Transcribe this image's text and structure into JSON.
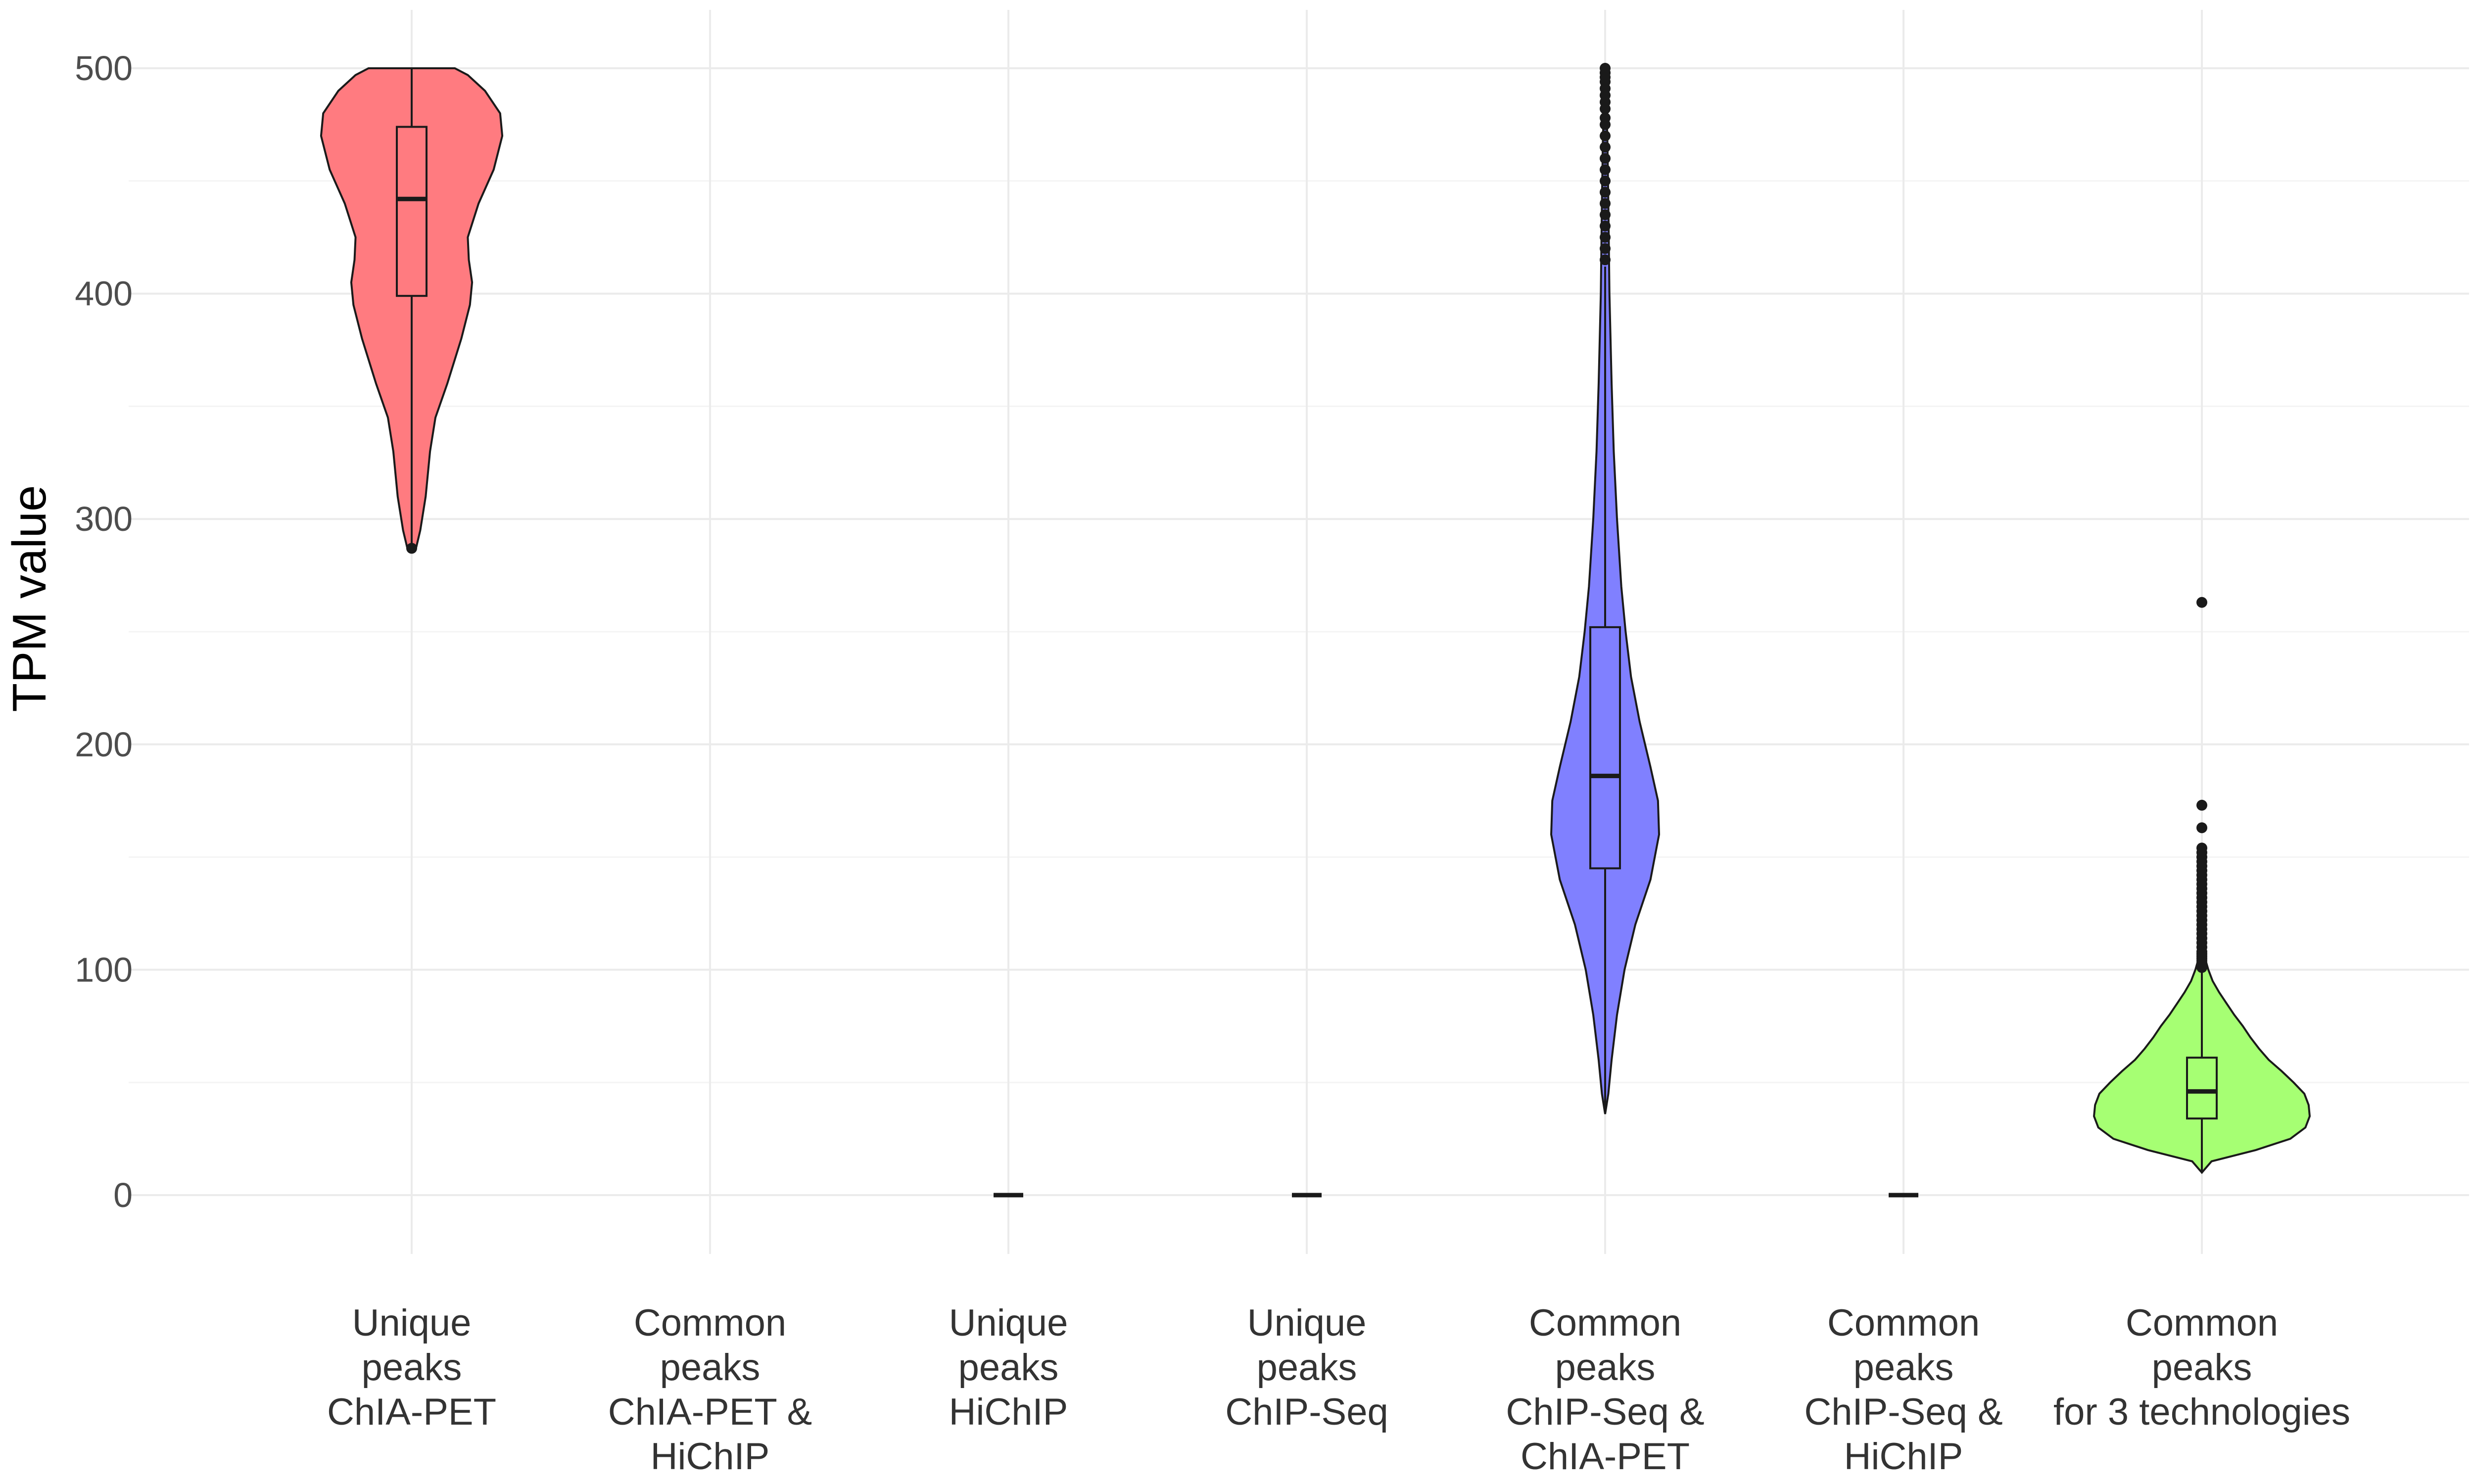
{
  "chart_data": {
    "type": "violin",
    "title": "",
    "xlabel": "",
    "ylabel": "TPM value",
    "ylim": [
      -25,
      525
    ],
    "y_ticks": [
      0,
      100,
      200,
      300,
      400,
      500
    ],
    "y_tick_labels": [
      "0",
      "100",
      "200",
      "300",
      "400",
      "500"
    ],
    "grid": true,
    "legend": "none",
    "categories": [
      {
        "lines": [
          "Unique",
          "peaks",
          "ChIA-PET"
        ]
      },
      {
        "lines": [
          "Common",
          "peaks",
          "ChIA-PET &",
          "HiChIP"
        ]
      },
      {
        "lines": [
          "Unique",
          "peaks",
          "HiChIP"
        ]
      },
      {
        "lines": [
          "Unique",
          "peaks",
          "ChIP-Seq"
        ]
      },
      {
        "lines": [
          "Common",
          "peaks",
          "ChIP-Seq &",
          "ChIA-PET"
        ]
      },
      {
        "lines": [
          "Common",
          "peaks",
          "ChIP-Seq &",
          "HiChIP"
        ]
      },
      {
        "lines": [
          "Common",
          "peaks",
          "for 3 technologies"
        ]
      }
    ],
    "series": [
      {
        "category_index": 0,
        "color": "#ff7b80",
        "min": 287,
        "q1": 399,
        "median": 442,
        "q3": 474,
        "max": 500,
        "outliers": [
          287
        ],
        "density": [
          [
            287,
            0.04
          ],
          [
            295,
            0.08
          ],
          [
            310,
            0.13
          ],
          [
            330,
            0.17
          ],
          [
            345,
            0.22
          ],
          [
            360,
            0.33
          ],
          [
            380,
            0.46
          ],
          [
            395,
            0.54
          ],
          [
            405,
            0.56
          ],
          [
            415,
            0.53
          ],
          [
            425,
            0.52
          ],
          [
            440,
            0.62
          ],
          [
            455,
            0.76
          ],
          [
            470,
            0.84
          ],
          [
            480,
            0.82
          ],
          [
            490,
            0.68
          ],
          [
            497,
            0.52
          ],
          [
            500,
            0.4
          ]
        ]
      },
      {
        "category_index": 1,
        "color": "#ffffff",
        "empty": true
      },
      {
        "category_index": 2,
        "color": "#dddddd",
        "min": 0,
        "q1": 0,
        "median": 0,
        "q3": 0,
        "max": 0,
        "outliers": [],
        "density": []
      },
      {
        "category_index": 3,
        "color": "#dddddd",
        "min": 0,
        "q1": 0,
        "median": 0,
        "q3": 0,
        "max": 0,
        "outliers": [],
        "density": []
      },
      {
        "category_index": 4,
        "color": "#8080ff",
        "min": 36,
        "q1": 145,
        "median": 186,
        "q3": 252,
        "max": 412,
        "outliers": [
          415,
          420,
          425,
          430,
          435,
          440,
          445,
          450,
          455,
          460,
          465,
          470,
          475,
          478,
          482,
          485,
          488,
          491,
          494,
          496,
          498,
          500
        ],
        "density": [
          [
            36,
            0.0
          ],
          [
            45,
            0.03
          ],
          [
            60,
            0.06
          ],
          [
            80,
            0.11
          ],
          [
            100,
            0.18
          ],
          [
            120,
            0.28
          ],
          [
            140,
            0.42
          ],
          [
            160,
            0.5
          ],
          [
            175,
            0.49
          ],
          [
            190,
            0.42
          ],
          [
            210,
            0.32
          ],
          [
            230,
            0.24
          ],
          [
            250,
            0.19
          ],
          [
            270,
            0.15
          ],
          [
            300,
            0.11
          ],
          [
            330,
            0.08
          ],
          [
            360,
            0.06
          ],
          [
            400,
            0.04
          ],
          [
            440,
            0.03
          ],
          [
            470,
            0.02
          ],
          [
            500,
            0.0
          ]
        ]
      },
      {
        "category_index": 5,
        "color": "#dddddd",
        "min": 0,
        "q1": 0,
        "median": 0,
        "q3": 0,
        "max": 0,
        "outliers": [],
        "density": []
      },
      {
        "category_index": 6,
        "color": "#a6ff73",
        "min": 10,
        "q1": 34,
        "median": 46,
        "q3": 61,
        "max": 100,
        "outliers": [
          101,
          102,
          103,
          104,
          105,
          106,
          107,
          108,
          110,
          112,
          114,
          116,
          118,
          120,
          122,
          124,
          126,
          128,
          130,
          132,
          134,
          136,
          138,
          140,
          142,
          144,
          146,
          148,
          150,
          152,
          154,
          163,
          173,
          263
        ],
        "density": [
          [
            10,
            0.0
          ],
          [
            15,
            0.09
          ],
          [
            20,
            0.5
          ],
          [
            25,
            0.82
          ],
          [
            30,
            0.96
          ],
          [
            35,
            1.0
          ],
          [
            40,
            0.99
          ],
          [
            45,
            0.95
          ],
          [
            50,
            0.85
          ],
          [
            55,
            0.74
          ],
          [
            60,
            0.62
          ],
          [
            65,
            0.53
          ],
          [
            70,
            0.45
          ],
          [
            75,
            0.38
          ],
          [
            80,
            0.3
          ],
          [
            85,
            0.23
          ],
          [
            90,
            0.16
          ],
          [
            95,
            0.1
          ],
          [
            100,
            0.06
          ],
          [
            105,
            0.03
          ],
          [
            110,
            0.01
          ],
          [
            115,
            0.0
          ]
        ]
      }
    ]
  }
}
